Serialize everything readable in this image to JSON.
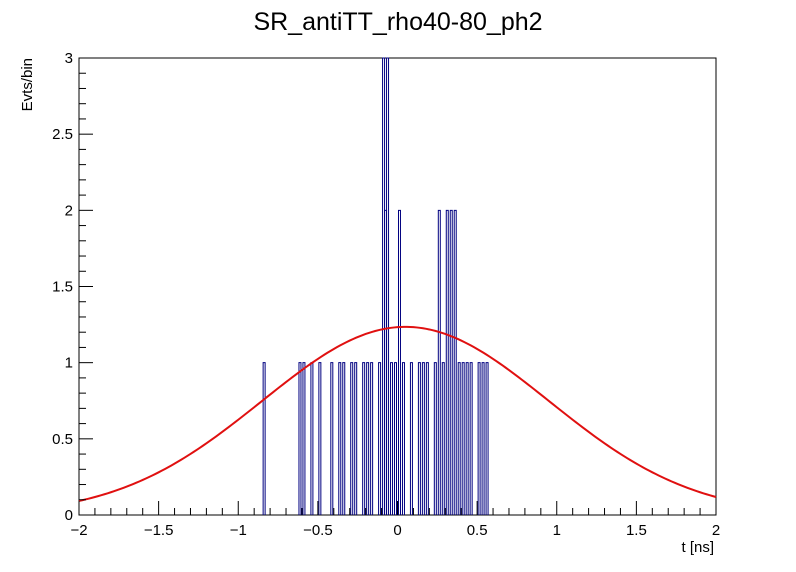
{
  "chart_data": {
    "type": "histogram",
    "title": "SR_antiTT_rho40-80_ph2",
    "xlabel": "t [ns]",
    "ylabel": "Evts/bin",
    "xlim": [
      -2,
      2
    ],
    "ylim": [
      0,
      3
    ],
    "x_ticks": [
      "−2",
      "−1.5",
      "−1",
      "−0.5",
      "0",
      "0.5",
      "1",
      "1.5",
      "2"
    ],
    "y_ticks": [
      "0",
      "0.5",
      "1",
      "1.5",
      "2",
      "2.5",
      "3"
    ],
    "bin_width": 0.0125,
    "bins": [
      {
        "x": -0.8375,
        "y": 1
      },
      {
        "x": -0.6125,
        "y": 1
      },
      {
        "x": -0.5875,
        "y": 1
      },
      {
        "x": -0.5375,
        "y": 1
      },
      {
        "x": -0.4875,
        "y": 1
      },
      {
        "x": -0.4125,
        "y": 1
      },
      {
        "x": -0.3625,
        "y": 1
      },
      {
        "x": -0.3375,
        "y": 1
      },
      {
        "x": -0.2875,
        "y": 1
      },
      {
        "x": -0.2625,
        "y": 1
      },
      {
        "x": -0.2125,
        "y": 1
      },
      {
        "x": -0.1875,
        "y": 1
      },
      {
        "x": -0.1625,
        "y": 1
      },
      {
        "x": -0.1125,
        "y": 1
      },
      {
        "x": -0.0875,
        "y": 3
      },
      {
        "x": -0.075,
        "y": 2
      },
      {
        "x": -0.0625,
        "y": 3
      },
      {
        "x": -0.0375,
        "y": 1
      },
      {
        "x": -0.0125,
        "y": 1
      },
      {
        "x": 0.0125,
        "y": 2
      },
      {
        "x": 0.0375,
        "y": 1
      },
      {
        "x": 0.0875,
        "y": 1
      },
      {
        "x": 0.1375,
        "y": 1
      },
      {
        "x": 0.1625,
        "y": 1
      },
      {
        "x": 0.1875,
        "y": 1
      },
      {
        "x": 0.2375,
        "y": 1
      },
      {
        "x": 0.2625,
        "y": 2
      },
      {
        "x": 0.2875,
        "y": 1
      },
      {
        "x": 0.3125,
        "y": 2
      },
      {
        "x": 0.3375,
        "y": 2
      },
      {
        "x": 0.3625,
        "y": 2
      },
      {
        "x": 0.3875,
        "y": 1
      },
      {
        "x": 0.4125,
        "y": 1
      },
      {
        "x": 0.4375,
        "y": 1
      },
      {
        "x": 0.4625,
        "y": 1
      },
      {
        "x": 0.5125,
        "y": 1
      },
      {
        "x": 0.5375,
        "y": 1
      },
      {
        "x": 0.5625,
        "y": 1
      }
    ],
    "fit": {
      "type": "gaussian",
      "amplitude": 1.235,
      "mean": 0.05,
      "sigma": 0.9
    },
    "colors": {
      "histogram": "#000080",
      "fit": "#e01010",
      "axes": "#000000"
    }
  }
}
